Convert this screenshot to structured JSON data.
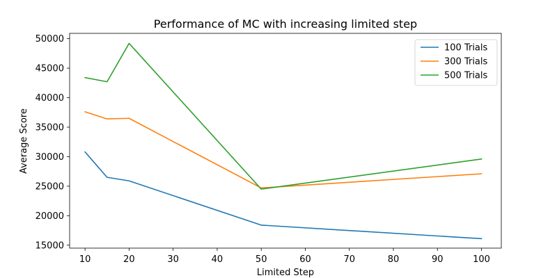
{
  "chart_data": {
    "type": "line",
    "title": "Performance of MC with increasing limited step",
    "xlabel": "Limited Step",
    "ylabel": "Average Score",
    "x": [
      10,
      15,
      20,
      50,
      100
    ],
    "xticks": [
      10,
      20,
      30,
      40,
      50,
      60,
      70,
      80,
      90,
      100
    ],
    "yticks": [
      15000,
      20000,
      25000,
      30000,
      35000,
      40000,
      45000,
      50000
    ],
    "xlim": [
      6.5,
      104.5
    ],
    "ylim": [
      14500,
      50900
    ],
    "grid": false,
    "legend_position": "top-right",
    "series": [
      {
        "name": "100 Trials",
        "color": "#1f77b4",
        "values": [
          30800,
          26500,
          25900,
          18400,
          16100
        ]
      },
      {
        "name": "300 Trials",
        "color": "#ff7f0e",
        "values": [
          37600,
          36400,
          36500,
          24700,
          27100
        ]
      },
      {
        "name": "500 Trials",
        "color": "#2ca02c",
        "values": [
          43400,
          42700,
          49200,
          24500,
          29600
        ]
      }
    ]
  }
}
